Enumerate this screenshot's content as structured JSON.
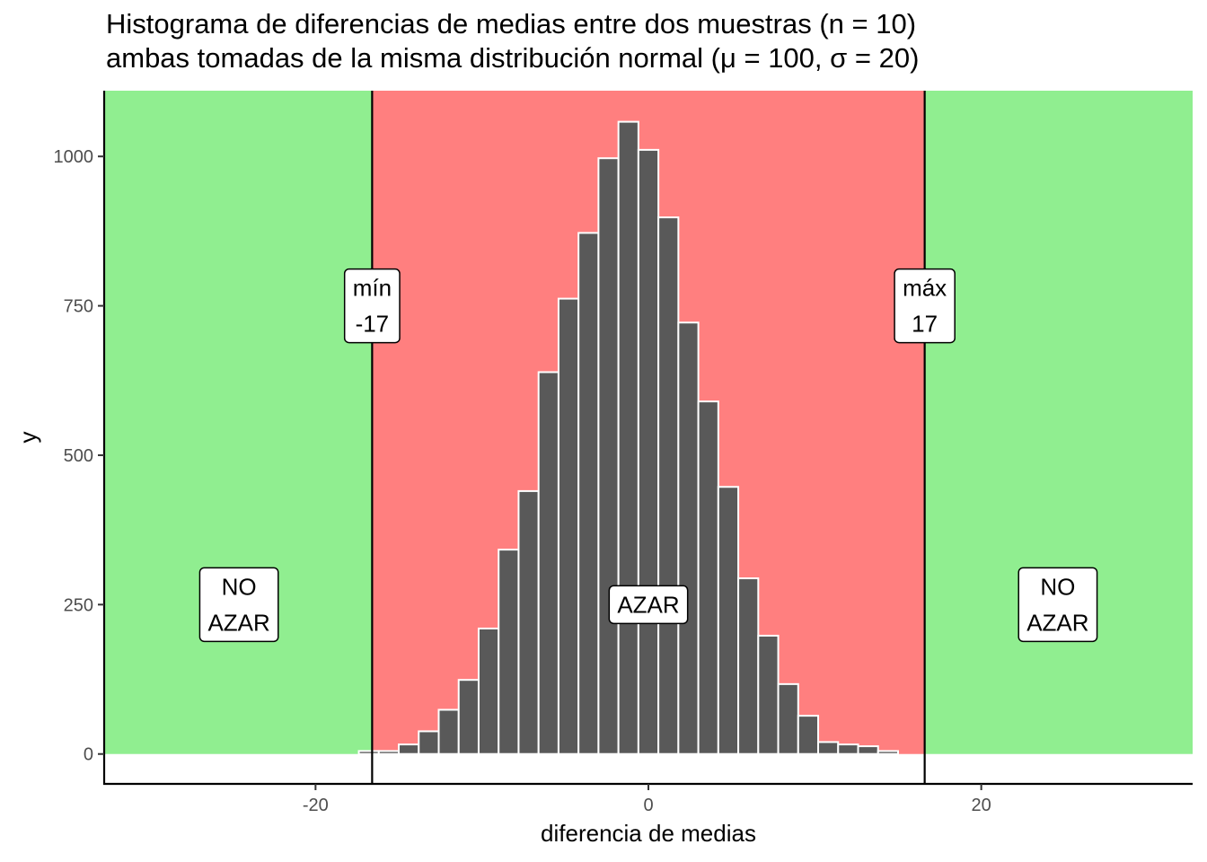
{
  "chart_data": {
    "type": "histogram",
    "title": "Histograma de diferencias de medias entre dos muestras (n = 10)",
    "subtitle": "ambas tomadas de la misma distribución normal (μ = 100, σ = 20)",
    "xlabel": "diferencia de medias",
    "ylabel": "y",
    "xlim": [
      -32.7,
      32.7
    ],
    "ylim": [
      -50,
      1110
    ],
    "x_ticks": [
      {
        "value": -20,
        "label": "-20"
      },
      {
        "value": 0,
        "label": "0"
      },
      {
        "value": 20,
        "label": "20"
      }
    ],
    "y_ticks": [
      {
        "value": 0,
        "label": "0"
      },
      {
        "value": 250,
        "label": "250"
      },
      {
        "value": 500,
        "label": "500"
      },
      {
        "value": 750,
        "label": "750"
      },
      {
        "value": 1000,
        "label": "1000"
      }
    ],
    "bin_width": 1.2,
    "bin_centers": [
      -16.8,
      -15.6,
      -14.4,
      -13.2,
      -12.0,
      -10.8,
      -9.6,
      -8.4,
      -7.2,
      -6.0,
      -4.8,
      -3.6,
      -2.4,
      -1.2,
      0.0,
      1.2,
      2.4,
      3.6,
      4.8,
      6.0,
      7.2,
      8.4,
      9.6,
      10.8,
      12.0,
      13.2,
      14.4,
      15.6,
      16.8
    ],
    "counts": [
      5,
      5,
      16,
      38,
      74,
      124,
      210,
      342,
      440,
      639,
      762,
      872,
      997,
      1058,
      1011,
      898,
      722,
      590,
      447,
      294,
      198,
      117,
      64,
      20,
      16,
      13,
      5,
      0,
      0
    ],
    "regions": [
      {
        "name": "NO AZAR",
        "from": -32.7,
        "to": -16.6,
        "color": "#90EE90"
      },
      {
        "name": "AZAR",
        "from": -16.6,
        "to": 16.6,
        "color": "#FF7F7F"
      },
      {
        "name": "NO AZAR",
        "from": 16.6,
        "to": 32.7,
        "color": "#90EE90"
      }
    ],
    "vlines": [
      -16.6,
      16.6
    ],
    "region_labels": [
      {
        "lines": [
          "NO",
          "AZAR"
        ],
        "x": -24.6,
        "y": 250
      },
      {
        "lines": [
          "AZAR"
        ],
        "x": 0,
        "y": 250
      },
      {
        "lines": [
          "NO",
          "AZAR"
        ],
        "x": 24.6,
        "y": 250
      }
    ],
    "threshold_labels": [
      {
        "lines": [
          "mín",
          "-17"
        ],
        "x": -16.6,
        "y": 750
      },
      {
        "lines": [
          "máx",
          "17"
        ],
        "x": 16.6,
        "y": 750
      }
    ],
    "colors": {
      "bar_fill": "#595959",
      "bar_stroke": "#ffffff",
      "azar": "#FF7F7F",
      "no_azar": "#90EE90",
      "axis": "#000000",
      "tick_label": "#4d4d4d"
    }
  }
}
